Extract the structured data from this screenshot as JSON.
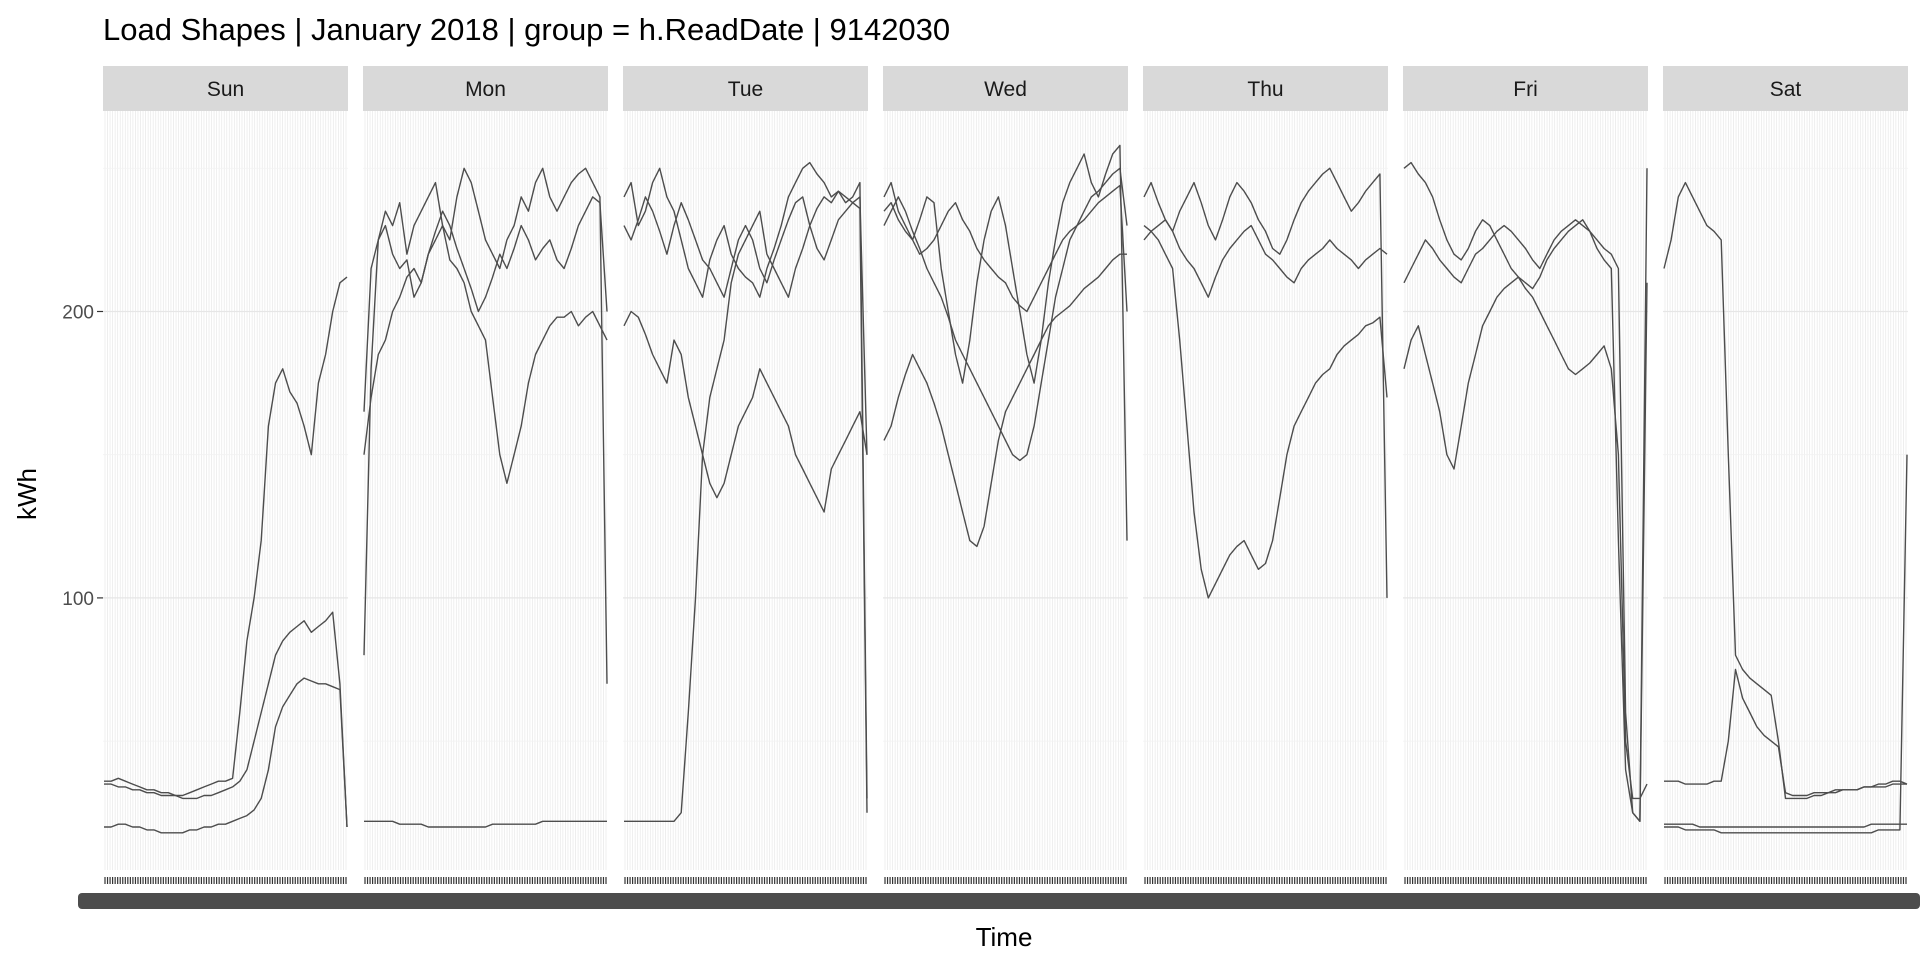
{
  "chart_data": {
    "type": "line",
    "title": "Load Shapes | January 2018 | group = h.ReadDate |  9142030",
    "xlabel": "Time",
    "ylabel": "kWh",
    "ylim": [
      5,
      270
    ],
    "yticks": [
      100,
      200
    ],
    "facets": [
      "Sun",
      "Mon",
      "Tue",
      "Wed",
      "Thu",
      "Fri",
      "Sat"
    ],
    "grid": true,
    "legend": "none",
    "line_color": "#4d4d4d",
    "strip_color": "#d9d9d9",
    "series": [
      {
        "facet": "Sun",
        "values": [
          36,
          36,
          37,
          36,
          35,
          34,
          33,
          33,
          32,
          32,
          31,
          31,
          32,
          33,
          34,
          35,
          36,
          36,
          37,
          60,
          85,
          100,
          120,
          160,
          175,
          180,
          172,
          168,
          160,
          150,
          175,
          185,
          200,
          210,
          212
        ]
      },
      {
        "facet": "Sun",
        "values": [
          35,
          35,
          34,
          34,
          33,
          33,
          32,
          32,
          31,
          31,
          31,
          30,
          30,
          30,
          31,
          31,
          32,
          33,
          34,
          36,
          40,
          50,
          60,
          70,
          80,
          85,
          88,
          90,
          92,
          88,
          90,
          92,
          95,
          70,
          20
        ]
      },
      {
        "facet": "Sun",
        "values": [
          20,
          20,
          21,
          21,
          20,
          20,
          19,
          19,
          18,
          18,
          18,
          18,
          19,
          19,
          20,
          20,
          21,
          21,
          22,
          23,
          24,
          26,
          30,
          40,
          55,
          62,
          66,
          70,
          72,
          71,
          70,
          70,
          69,
          68,
          20
        ]
      },
      {
        "facet": "Mon",
        "values": [
          80,
          180,
          225,
          235,
          230,
          238,
          220,
          230,
          235,
          240,
          245,
          230,
          225,
          240,
          250,
          245,
          235,
          225,
          220,
          215,
          225,
          230,
          240,
          235,
          245,
          250,
          240,
          235,
          240,
          245,
          248,
          250,
          245,
          240,
          70
        ]
      },
      {
        "facet": "Mon",
        "values": [
          165,
          215,
          225,
          230,
          220,
          215,
          218,
          205,
          210,
          220,
          228,
          235,
          230,
          222,
          215,
          208,
          200,
          205,
          212,
          220,
          215,
          222,
          230,
          225,
          218,
          222,
          225,
          218,
          215,
          222,
          230,
          235,
          240,
          238,
          200
        ]
      },
      {
        "facet": "Mon",
        "values": [
          22,
          22,
          22,
          22,
          22,
          21,
          21,
          21,
          21,
          20,
          20,
          20,
          20,
          20,
          20,
          20,
          20,
          20,
          21,
          21,
          21,
          21,
          21,
          21,
          21,
          22,
          22,
          22,
          22,
          22,
          22,
          22,
          22,
          22,
          22
        ]
      },
      {
        "facet": "Mon",
        "values": [
          150,
          170,
          185,
          190,
          200,
          205,
          212,
          215,
          210,
          220,
          225,
          230,
          218,
          215,
          210,
          200,
          195,
          190,
          170,
          150,
          140,
          150,
          160,
          175,
          185,
          190,
          195,
          198,
          198,
          200,
          195,
          198,
          200,
          195,
          190
        ]
      },
      {
        "facet": "Tue",
        "values": [
          240,
          245,
          230,
          235,
          245,
          250,
          240,
          235,
          225,
          215,
          210,
          205,
          218,
          225,
          230,
          220,
          215,
          212,
          210,
          205,
          215,
          222,
          230,
          240,
          245,
          250,
          252,
          248,
          245,
          240,
          242,
          238,
          240,
          245,
          30
        ]
      },
      {
        "facet": "Tue",
        "values": [
          230,
          225,
          232,
          240,
          235,
          228,
          220,
          230,
          238,
          232,
          225,
          218,
          215,
          210,
          205,
          215,
          225,
          230,
          225,
          215,
          210,
          218,
          225,
          232,
          238,
          240,
          230,
          222,
          218,
          225,
          232,
          235,
          238,
          240,
          150
        ]
      },
      {
        "facet": "Tue",
        "values": [
          195,
          200,
          198,
          192,
          185,
          180,
          175,
          190,
          185,
          170,
          160,
          150,
          140,
          135,
          140,
          150,
          160,
          165,
          170,
          180,
          175,
          170,
          165,
          160,
          150,
          145,
          140,
          135,
          130,
          145,
          150,
          155,
          160,
          165,
          150
        ]
      },
      {
        "facet": "Tue",
        "values": [
          22,
          22,
          22,
          22,
          22,
          22,
          22,
          22,
          25,
          60,
          100,
          150,
          170,
          180,
          190,
          210,
          220,
          225,
          230,
          235,
          220,
          215,
          210,
          205,
          215,
          222,
          230,
          236,
          240,
          238,
          242,
          240,
          238,
          236,
          25
        ]
      },
      {
        "facet": "Wed",
        "values": [
          240,
          245,
          235,
          230,
          225,
          232,
          240,
          238,
          215,
          200,
          185,
          175,
          190,
          210,
          225,
          235,
          240,
          230,
          215,
          200,
          185,
          175,
          190,
          210,
          225,
          238,
          245,
          250,
          255,
          245,
          240,
          248,
          255,
          258,
          120
        ]
      },
      {
        "facet": "Wed",
        "values": [
          235,
          238,
          232,
          228,
          225,
          220,
          222,
          225,
          230,
          235,
          238,
          232,
          228,
          222,
          218,
          215,
          212,
          210,
          205,
          202,
          200,
          205,
          210,
          215,
          220,
          225,
          228,
          230,
          232,
          235,
          238,
          240,
          242,
          244,
          200
        ]
      },
      {
        "facet": "Wed",
        "values": [
          155,
          160,
          170,
          178,
          185,
          180,
          175,
          168,
          160,
          150,
          140,
          130,
          120,
          118,
          125,
          140,
          155,
          165,
          170,
          175,
          180,
          185,
          190,
          195,
          198,
          200,
          202,
          205,
          208,
          210,
          212,
          215,
          218,
          220,
          220
        ]
      },
      {
        "facet": "Wed",
        "values": [
          230,
          235,
          240,
          235,
          228,
          222,
          215,
          210,
          205,
          198,
          190,
          185,
          180,
          175,
          170,
          165,
          160,
          155,
          150,
          148,
          150,
          160,
          175,
          190,
          205,
          215,
          225,
          230,
          235,
          240,
          242,
          245,
          248,
          250,
          230
        ]
      },
      {
        "facet": "Thu",
        "values": [
          240,
          245,
          238,
          232,
          228,
          235,
          240,
          245,
          238,
          230,
          225,
          232,
          240,
          245,
          242,
          238,
          232,
          228,
          222,
          220,
          225,
          232,
          238,
          242,
          245,
          248,
          250,
          245,
          240,
          235,
          238,
          242,
          245,
          248,
          100
        ]
      },
      {
        "facet": "Thu",
        "values": [
          225,
          228,
          230,
          232,
          228,
          222,
          218,
          215,
          210,
          205,
          212,
          218,
          222,
          225,
          228,
          230,
          225,
          220,
          218,
          215,
          212,
          210,
          215,
          218,
          220,
          222,
          225,
          222,
          220,
          218,
          215,
          218,
          220,
          222,
          220
        ]
      },
      {
        "facet": "Thu",
        "values": [
          230,
          228,
          225,
          220,
          215,
          190,
          160,
          130,
          110,
          100,
          105,
          110,
          115,
          118,
          120,
          115,
          110,
          112,
          120,
          135,
          150,
          160,
          165,
          170,
          175,
          178,
          180,
          185,
          188,
          190,
          192,
          195,
          196,
          198,
          170
        ]
      },
      {
        "facet": "Fri",
        "values": [
          250,
          252,
          248,
          245,
          240,
          232,
          225,
          220,
          218,
          222,
          228,
          232,
          230,
          225,
          220,
          215,
          212,
          210,
          208,
          212,
          218,
          222,
          225,
          228,
          230,
          232,
          228,
          222,
          218,
          215,
          120,
          40,
          25,
          22,
          250
        ]
      },
      {
        "facet": "Fri",
        "values": [
          210,
          215,
          220,
          225,
          222,
          218,
          215,
          212,
          210,
          215,
          220,
          222,
          225,
          228,
          230,
          228,
          225,
          222,
          218,
          215,
          220,
          225,
          228,
          230,
          232,
          230,
          228,
          225,
          222,
          220,
          215,
          60,
          25,
          22,
          210
        ]
      },
      {
        "facet": "Fri",
        "values": [
          180,
          190,
          195,
          185,
          175,
          165,
          150,
          145,
          160,
          175,
          185,
          195,
          200,
          205,
          208,
          210,
          212,
          208,
          205,
          200,
          195,
          190,
          185,
          180,
          178,
          180,
          182,
          185,
          188,
          180,
          150,
          50,
          30,
          30,
          35
        ]
      },
      {
        "facet": "Sat",
        "values": [
          215,
          225,
          240,
          245,
          240,
          235,
          230,
          228,
          225,
          150,
          80,
          75,
          72,
          70,
          68,
          66,
          50,
          30,
          30,
          30,
          30,
          31,
          31,
          32,
          32,
          33,
          33,
          33,
          34,
          34,
          35,
          35,
          36,
          36,
          35
        ]
      },
      {
        "facet": "Sat",
        "values": [
          36,
          36,
          36,
          35,
          35,
          35,
          35,
          36,
          36,
          50,
          75,
          65,
          60,
          55,
          52,
          50,
          48,
          32,
          31,
          31,
          31,
          32,
          32,
          32,
          33,
          33,
          33,
          33,
          34,
          34,
          34,
          34,
          35,
          35,
          35
        ]
      },
      {
        "facet": "Sat",
        "values": [
          21,
          21,
          21,
          21,
          21,
          20,
          20,
          20,
          20,
          20,
          20,
          20,
          20,
          20,
          20,
          20,
          20,
          20,
          20,
          20,
          20,
          20,
          20,
          20,
          20,
          20,
          20,
          20,
          20,
          21,
          21,
          21,
          21,
          21,
          21
        ]
      },
      {
        "facet": "Sat",
        "values": [
          20,
          20,
          20,
          19,
          19,
          19,
          19,
          19,
          18,
          18,
          18,
          18,
          18,
          18,
          18,
          18,
          18,
          18,
          18,
          18,
          18,
          18,
          18,
          18,
          18,
          18,
          18,
          18,
          18,
          18,
          19,
          19,
          19,
          19,
          150
        ]
      }
    ]
  }
}
